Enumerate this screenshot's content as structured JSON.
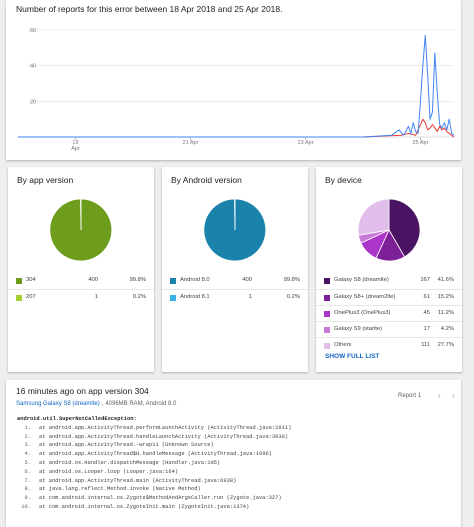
{
  "trend_chart": {
    "title": "Number of reports for this error between 18 Apr 2018 and 25 Apr 2018.",
    "y_ticks": [
      "60",
      "40",
      "20"
    ],
    "x_ticks": [
      "19",
      "21 Apr",
      "23 Apr",
      "25 Apr"
    ],
    "x_tick_sub": "Apr",
    "colors": {
      "line_main": "#4285f4",
      "line_secondary": "#e53935",
      "grid": "#e0e0e0"
    }
  },
  "chart_data": {
    "type": "line",
    "title": "Number of reports for this error between 18 Apr 2018 and 25 Apr 2018.",
    "xlabel": "",
    "ylabel": "",
    "x_range": [
      "2018-04-18",
      "2018-04-25"
    ],
    "ylim": [
      0,
      60
    ],
    "y_ticks": [
      20,
      40,
      60
    ],
    "grid": true,
    "series": [
      {
        "color": "#4285f4",
        "points": [
          [
            "2018-04-18",
            0
          ],
          [
            "2018-04-22",
            0
          ],
          [
            "2018-04-24",
            0
          ],
          [
            "2018-04-24T12",
            1
          ],
          [
            "2018-04-24T15",
            4
          ],
          [
            "2018-04-24T17",
            1
          ],
          [
            "2018-04-24T19",
            6
          ],
          [
            "2018-04-24T20",
            2
          ],
          [
            "2018-04-24T21",
            8
          ],
          [
            "2018-04-24T22",
            3
          ],
          [
            "2018-04-24T23",
            2
          ],
          [
            "2018-04-25T00",
            20
          ],
          [
            "2018-04-25T01",
            40
          ],
          [
            "2018-04-25T02",
            57
          ],
          [
            "2018-04-25T03",
            35
          ],
          [
            "2018-04-25T04",
            10
          ],
          [
            "2018-04-25T05",
            14
          ],
          [
            "2018-04-25T06",
            47
          ],
          [
            "2018-04-25T07",
            25
          ],
          [
            "2018-04-25T08",
            7
          ],
          [
            "2018-04-25T09",
            5
          ],
          [
            "2018-04-25T10",
            8
          ],
          [
            "2018-04-25T11",
            4
          ],
          [
            "2018-04-25T12",
            10
          ],
          [
            "2018-04-25T13",
            2
          ],
          [
            "2018-04-25T14",
            1
          ]
        ]
      },
      {
        "color": "#e53935",
        "points": [
          [
            "2018-04-18",
            0
          ],
          [
            "2018-04-24",
            0
          ],
          [
            "2018-04-24T16",
            1
          ],
          [
            "2018-04-24T19",
            2
          ],
          [
            "2018-04-24T22",
            1
          ],
          [
            "2018-04-25T00",
            7
          ],
          [
            "2018-04-25T01",
            10
          ],
          [
            "2018-04-25T02",
            8
          ],
          [
            "2018-04-25T03",
            4
          ],
          [
            "2018-04-25T04",
            5
          ],
          [
            "2018-04-25T05",
            7
          ],
          [
            "2018-04-25T06",
            5
          ],
          [
            "2018-04-25T07",
            3
          ],
          [
            "2018-04-25T08",
            6
          ],
          [
            "2018-04-25T09",
            4
          ],
          [
            "2018-04-25T10",
            5
          ],
          [
            "2018-04-25T11",
            3
          ],
          [
            "2018-04-25T12",
            2
          ],
          [
            "2018-04-25T13",
            1
          ],
          [
            "2018-04-25T14",
            0
          ]
        ]
      }
    ]
  },
  "app_version": {
    "title": "By app version",
    "slices": [
      {
        "label": "304",
        "count": "400",
        "pct": "99.8%",
        "value": 99.8,
        "color": "#6e9d1d"
      },
      {
        "label": "207",
        "count": "1",
        "pct": "0.2%",
        "value": 0.2,
        "color": "#a6cf34"
      }
    ]
  },
  "android_version": {
    "title": "By Android version",
    "slices": [
      {
        "label": "Android 8.0",
        "count": "400",
        "pct": "99.8%",
        "value": 99.8,
        "color": "#1a82ab"
      },
      {
        "label": "Android 8.1",
        "count": "1",
        "pct": "0.2%",
        "value": 0.2,
        "color": "#38b2e0"
      }
    ]
  },
  "device": {
    "title": "By device",
    "slices": [
      {
        "label": "Galaxy S8 (dreamlte)",
        "count": "167",
        "pct": "41.6%",
        "value": 41.6,
        "color": "#4a1462"
      },
      {
        "label": "Galaxy S8+ (dream2lte)",
        "count": "61",
        "pct": "15.2%",
        "value": 15.2,
        "color": "#7d1f96"
      },
      {
        "label": "OnePlus3 (OnePlus3)",
        "count": "45",
        "pct": "11.2%",
        "value": 11.2,
        "color": "#ab35c8"
      },
      {
        "label": "Galaxy S9 (starlte)",
        "count": "17",
        "pct": "4.2%",
        "value": 4.2,
        "color": "#c97ad9"
      },
      {
        "label": "Others",
        "count": "111",
        "pct": "27.7%",
        "value": 27.7,
        "color": "#e0bdea"
      }
    ],
    "show_full_label": "SHOW FULL LIST"
  },
  "report": {
    "title": "16 minutes ago on app version 304",
    "device_link": "Samsung Galaxy S8 (dreamlte)",
    "device_spec": ", 4096MB RAM, Android 8.0",
    "report_label": "Report 1",
    "prev_icon": "chevron-left-icon",
    "next_icon": "chevron-right-icon",
    "exception": "android.util.SuperNotCalledException:",
    "stack": [
      {
        "n": "1.",
        "text": "at android.app.ActivityThread.performLaunchActivity (ActivityThread.java:2911)"
      },
      {
        "n": "2.",
        "text": "at android.app.ActivityThread.handleLaunchActivity (ActivityThread.java:3030)"
      },
      {
        "n": "3.",
        "text": "at android.app.ActivityThread.-wrap11 (Unknown Source)"
      },
      {
        "n": "4.",
        "text": "at android.app.ActivityThread$H.handleMessage (ActivityThread.java:1696)"
      },
      {
        "n": "5.",
        "text": "at android.os.Handler.dispatchMessage (Handler.java:105)"
      },
      {
        "n": "6.",
        "text": "at android.os.Looper.loop (Looper.java:164)"
      },
      {
        "n": "7.",
        "text": "at android.app.ActivityThread.main (ActivityThread.java:6938)"
      },
      {
        "n": "8.",
        "text": "at java.lang.reflect.Method.invoke (Native Method)"
      },
      {
        "n": "9.",
        "text": "at com.android.internal.os.Zygote$MethodAndArgsCaller.run (Zygote.java:327)"
      },
      {
        "n": "10.",
        "text": "at com.android.internal.os.ZygoteInit.main (ZygoteInit.java:1374)"
      }
    ]
  }
}
